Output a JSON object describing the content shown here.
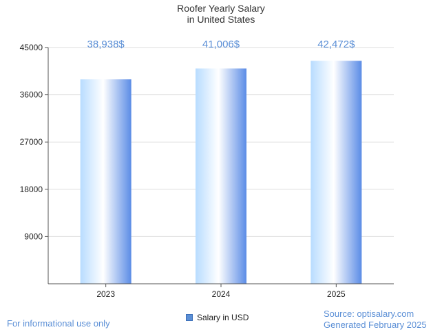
{
  "chart_data": {
    "type": "bar",
    "title_lines": [
      "Roofer Yearly Salary",
      "in United States"
    ],
    "categories": [
      "2023",
      "2024",
      "2025"
    ],
    "values": [
      38938,
      41006,
      42472
    ],
    "value_labels": [
      "38,938$",
      "41,006$",
      "42,472$"
    ],
    "series": [
      {
        "name": "Salary in USD",
        "values": [
          38938,
          41006,
          42472
        ]
      }
    ],
    "ylim": [
      0,
      45000
    ],
    "yticks": [
      9000,
      18000,
      27000,
      36000,
      45000
    ],
    "ytick_labels": [
      "9000",
      "18000",
      "27000",
      "36000",
      "45000"
    ],
    "grid": true,
    "legend_position": "bottom-center",
    "colors": {
      "bar_light": "#ffffff",
      "bar_mid": "#b8dcff",
      "bar_dark": "#5b8ce6",
      "value_label": "#5b8fd6",
      "grid": "#dddddd",
      "axis": "#555555"
    }
  },
  "footer": {
    "disclaimer": "For informational use only",
    "source": "Source: optisalary.com",
    "generated": "Generated February 2025"
  }
}
